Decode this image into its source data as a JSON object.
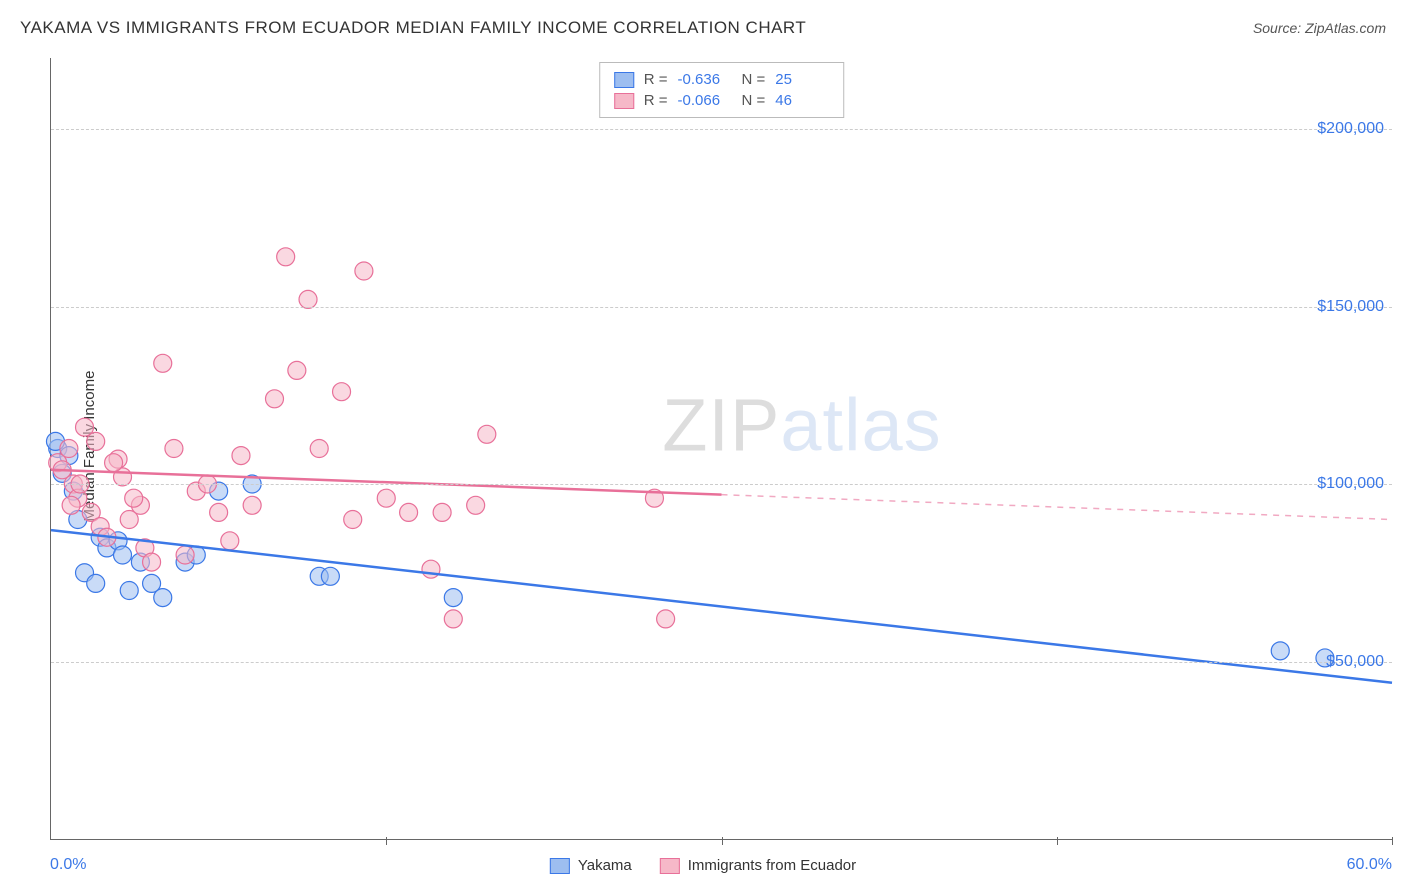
{
  "title": "YAKAMA VS IMMIGRANTS FROM ECUADOR MEDIAN FAMILY INCOME CORRELATION CHART",
  "source": "Source: ZipAtlas.com",
  "ylabel": "Median Family Income",
  "watermark_a": "ZIP",
  "watermark_b": "atlas",
  "chart": {
    "type": "scatter",
    "xlim": [
      0,
      60
    ],
    "ylim": [
      0,
      220000
    ],
    "x_tick_labels": [
      "0.0%",
      "60.0%"
    ],
    "x_minor_ticks": [
      15,
      30,
      45,
      60
    ],
    "y_gridlines": [
      50000,
      100000,
      150000,
      200000
    ],
    "y_tick_labels": [
      "$50,000",
      "$100,000",
      "$150,000",
      "$200,000"
    ],
    "background_color": "#ffffff",
    "grid_color": "#cccccc",
    "axis_color": "#666666",
    "tick_label_color": "#3b78e7",
    "marker_radius": 9,
    "marker_opacity": 0.55,
    "series": [
      {
        "name": "Yakama",
        "color_fill": "#9dbef0",
        "color_stroke": "#3b78e7",
        "R": "-0.636",
        "N": "25",
        "points": [
          [
            0.3,
            110000
          ],
          [
            0.5,
            103000
          ],
          [
            0.8,
            108000
          ],
          [
            1.0,
            98000
          ],
          [
            1.2,
            90000
          ],
          [
            1.5,
            75000
          ],
          [
            2.0,
            72000
          ],
          [
            2.2,
            85000
          ],
          [
            2.5,
            82000
          ],
          [
            3.0,
            84000
          ],
          [
            3.2,
            80000
          ],
          [
            3.5,
            70000
          ],
          [
            4.0,
            78000
          ],
          [
            4.5,
            72000
          ],
          [
            5.0,
            68000
          ],
          [
            6.0,
            78000
          ],
          [
            6.5,
            80000
          ],
          [
            7.5,
            98000
          ],
          [
            9.0,
            100000
          ],
          [
            12.0,
            74000
          ],
          [
            12.5,
            74000
          ],
          [
            18.0,
            68000
          ],
          [
            55.0,
            53000
          ],
          [
            57.0,
            51000
          ],
          [
            0.2,
            112000
          ]
        ],
        "trend": {
          "x1": 0,
          "y1": 87000,
          "x2": 60,
          "y2": 44000,
          "dashed_from": null
        }
      },
      {
        "name": "Immigrants from Ecuador",
        "color_fill": "#f6b8c8",
        "color_stroke": "#e87099",
        "R": "-0.066",
        "N": "46",
        "points": [
          [
            0.3,
            106000
          ],
          [
            0.5,
            104000
          ],
          [
            0.8,
            110000
          ],
          [
            1.0,
            100000
          ],
          [
            1.2,
            96000
          ],
          [
            1.5,
            116000
          ],
          [
            1.8,
            92000
          ],
          [
            2.0,
            112000
          ],
          [
            2.2,
            88000
          ],
          [
            2.5,
            85000
          ],
          [
            3.0,
            107000
          ],
          [
            3.2,
            102000
          ],
          [
            3.5,
            90000
          ],
          [
            4.0,
            94000
          ],
          [
            4.2,
            82000
          ],
          [
            4.5,
            78000
          ],
          [
            5.0,
            134000
          ],
          [
            5.5,
            110000
          ],
          [
            6.0,
            80000
          ],
          [
            6.5,
            98000
          ],
          [
            7.0,
            100000
          ],
          [
            7.5,
            92000
          ],
          [
            8.0,
            84000
          ],
          [
            8.5,
            108000
          ],
          [
            9.0,
            94000
          ],
          [
            10.0,
            124000
          ],
          [
            10.5,
            164000
          ],
          [
            11.0,
            132000
          ],
          [
            11.5,
            152000
          ],
          [
            12.0,
            110000
          ],
          [
            13.0,
            126000
          ],
          [
            13.5,
            90000
          ],
          [
            14.0,
            160000
          ],
          [
            15.0,
            96000
          ],
          [
            16.0,
            92000
          ],
          [
            17.0,
            76000
          ],
          [
            18.0,
            62000
          ],
          [
            19.0,
            94000
          ],
          [
            19.5,
            114000
          ],
          [
            17.5,
            92000
          ],
          [
            27.0,
            96000
          ],
          [
            27.5,
            62000
          ],
          [
            2.8,
            106000
          ],
          [
            3.7,
            96000
          ],
          [
            1.3,
            100000
          ],
          [
            0.9,
            94000
          ]
        ],
        "trend": {
          "x1": 0,
          "y1": 104000,
          "x2": 60,
          "y2": 90000,
          "dashed_from": 30
        }
      }
    ]
  },
  "legend_bottom": [
    {
      "label": "Yakama",
      "fill": "#9dbef0",
      "stroke": "#3b78e7"
    },
    {
      "label": "Immigrants from Ecuador",
      "fill": "#f6b8c8",
      "stroke": "#e87099"
    }
  ],
  "stats_labels": {
    "R": "R =",
    "N": "N ="
  }
}
